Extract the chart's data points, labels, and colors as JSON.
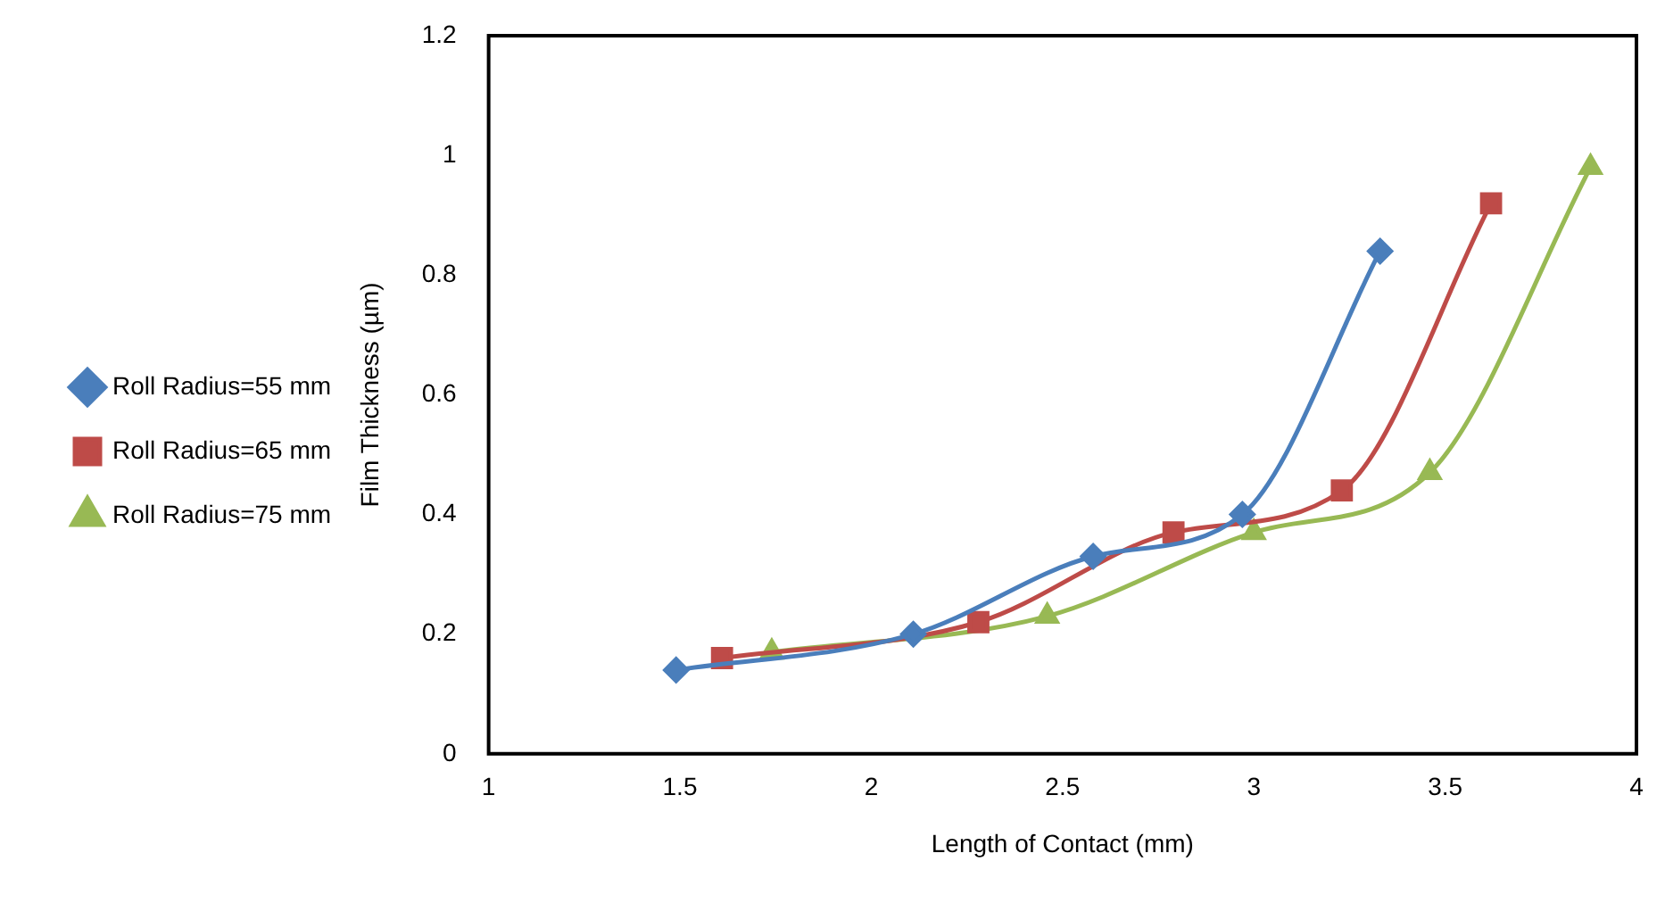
{
  "chart_data": {
    "type": "line",
    "xlabel": "Length of Contact (mm)",
    "ylabel": "Film Thickness (µm)",
    "xlim": [
      1,
      4
    ],
    "xticks": [
      1,
      1.5,
      2,
      2.5,
      3,
      3.5,
      4
    ],
    "ylim": [
      0,
      1.2
    ],
    "yticks": [
      0,
      0.2,
      0.4,
      0.6,
      0.8,
      1,
      1.2
    ],
    "grid": false,
    "legend": "left",
    "line_style": "solid",
    "series": [
      {
        "name": "Roll Radius=55 mm",
        "color": "#4a7ebb",
        "marker": "diamond",
        "x": [
          1.49,
          2.11,
          2.58,
          2.97,
          3.33
        ],
        "values": [
          0.14,
          0.2,
          0.33,
          0.4,
          0.84
        ]
      },
      {
        "name": "Roll Radius=65 mm",
        "color": "#be4b48",
        "marker": "square",
        "x": [
          1.61,
          2.28,
          2.79,
          3.23,
          3.62
        ],
        "values": [
          0.16,
          0.22,
          0.37,
          0.44,
          0.92
        ]
      },
      {
        "name": "Roll Radius=75 mm",
        "color": "#98b954",
        "marker": "triangle",
        "x": [
          1.74,
          2.46,
          3.0,
          3.46,
          3.88
        ],
        "values": [
          0.17,
          0.23,
          0.37,
          0.47,
          0.98
        ]
      }
    ]
  }
}
